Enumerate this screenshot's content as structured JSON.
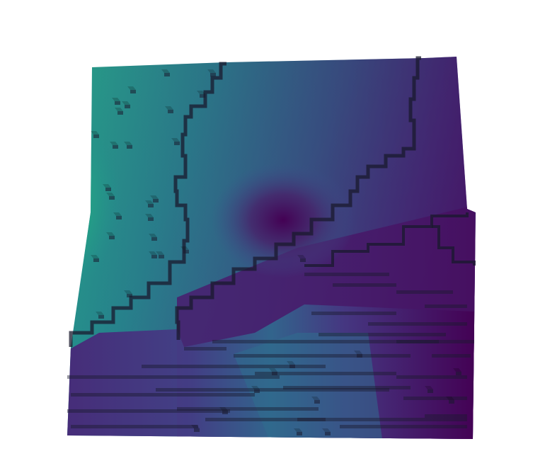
{
  "scene": {
    "type": "voxel-terrain-3d-surface",
    "colormap": "viridis",
    "colors": {
      "background": "#ffffff",
      "peak": "#f3e51f",
      "high": "#7ad151",
      "mid_high": "#22a884",
      "mid": "#2a788e",
      "mid_low": "#414487",
      "low": "#440154",
      "edge_shadow": "#1a1a2e"
    },
    "features": {
      "peak_region": "left-center",
      "valley_region": "center-right",
      "staircase_terraces": "bottom-band"
    }
  }
}
